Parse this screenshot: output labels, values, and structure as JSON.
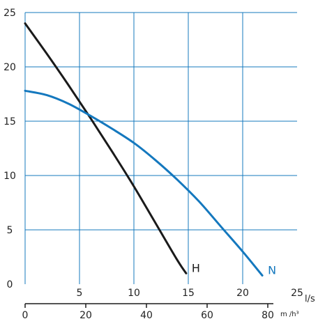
{
  "chart_data": {
    "type": "line",
    "x": {
      "label": "l/s",
      "ticks": [
        "5",
        "10",
        "15",
        "20",
        "25"
      ],
      "values": [
        5,
        10,
        15,
        20,
        25
      ],
      "range": [
        0,
        25
      ]
    },
    "x2": {
      "label": "m /h³",
      "ticks": [
        "0",
        "20",
        "40",
        "60",
        "80"
      ],
      "values": [
        0,
        20,
        40,
        60,
        80
      ],
      "range": [
        0,
        90
      ]
    },
    "y": {
      "ticks": [
        "0",
        "5",
        "10",
        "15",
        "20",
        "25"
      ],
      "values": [
        0,
        5,
        10,
        15,
        20,
        25
      ],
      "range": [
        0,
        25
      ]
    },
    "grid": true,
    "series": [
      {
        "name": "H",
        "color": "#1a1a1a",
        "points": [
          [
            0,
            24
          ],
          [
            2,
            21.2
          ],
          [
            4,
            18.3
          ],
          [
            6,
            15.3
          ],
          [
            8,
            12.2
          ],
          [
            10,
            9.0
          ],
          [
            12,
            5.6
          ],
          [
            14,
            2.2
          ],
          [
            14.8,
            1.0
          ]
        ]
      },
      {
        "name": "N",
        "color": "#1478be",
        "points": [
          [
            0,
            17.8
          ],
          [
            2,
            17.4
          ],
          [
            4,
            16.6
          ],
          [
            6,
            15.5
          ],
          [
            8,
            14.3
          ],
          [
            10,
            13.0
          ],
          [
            12,
            11.4
          ],
          [
            14,
            9.6
          ],
          [
            16,
            7.6
          ],
          [
            18,
            5.3
          ],
          [
            20,
            3.0
          ],
          [
            21.8,
            0.8
          ]
        ]
      }
    ]
  }
}
